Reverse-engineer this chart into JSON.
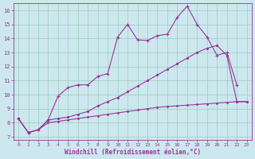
{
  "xlabel": "Windchill (Refroidissement éolien,°C)",
  "bg_color": "#cce8ee",
  "line_color": "#993399",
  "grid_color": "#99ccbb",
  "xlim": [
    -0.5,
    23.5
  ],
  "ylim": [
    6.8,
    16.5
  ],
  "xticks": [
    0,
    1,
    2,
    3,
    4,
    5,
    6,
    7,
    8,
    9,
    10,
    11,
    12,
    13,
    14,
    15,
    16,
    17,
    18,
    19,
    20,
    21,
    22,
    23
  ],
  "yticks": [
    7,
    8,
    9,
    10,
    11,
    12,
    13,
    14,
    15,
    16
  ],
  "series_top_x": [
    0,
    1,
    2,
    3,
    4,
    5,
    6,
    7,
    8,
    9,
    10,
    11,
    12,
    13,
    14,
    15,
    16,
    17,
    18,
    19,
    20,
    21,
    22
  ],
  "series_top_y": [
    8.3,
    7.3,
    7.5,
    8.2,
    9.9,
    10.5,
    10.7,
    10.7,
    11.3,
    11.5,
    14.1,
    15.0,
    13.9,
    13.85,
    14.2,
    14.3,
    15.5,
    16.3,
    15.0,
    14.1,
    12.8,
    13.0,
    10.7
  ],
  "series_mid_x": [
    0,
    1,
    2,
    3,
    4,
    5,
    6,
    7,
    8,
    9,
    10,
    11,
    12,
    13,
    14,
    15,
    16,
    17,
    18,
    19,
    20,
    21,
    22,
    23
  ],
  "series_mid_y": [
    8.3,
    7.3,
    7.5,
    8.2,
    8.3,
    8.4,
    8.6,
    8.8,
    9.2,
    9.5,
    9.8,
    10.2,
    10.6,
    11.0,
    11.4,
    11.8,
    12.2,
    12.6,
    13.0,
    13.3,
    13.5,
    12.8,
    9.5,
    9.5
  ],
  "series_bot_x": [
    0,
    1,
    2,
    3,
    4,
    5,
    6,
    7,
    8,
    9,
    10,
    11,
    12,
    13,
    14,
    15,
    16,
    17,
    18,
    19,
    20,
    21,
    22,
    23
  ],
  "series_bot_y": [
    8.3,
    7.3,
    7.5,
    8.0,
    8.1,
    8.2,
    8.3,
    8.4,
    8.5,
    8.6,
    8.7,
    8.8,
    8.9,
    9.0,
    9.1,
    9.15,
    9.2,
    9.25,
    9.3,
    9.35,
    9.4,
    9.45,
    9.5,
    9.5
  ]
}
